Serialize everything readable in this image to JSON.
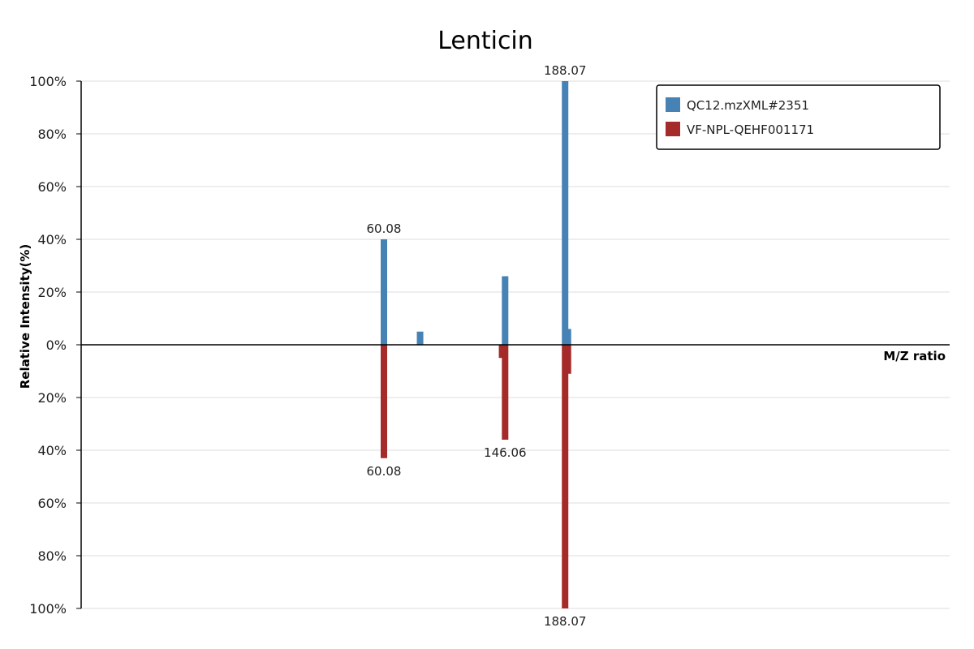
{
  "chart_data": {
    "type": "bar",
    "title": "Lenticin",
    "ylabel": "Relative Intensity(%)",
    "xlabel": "M/Z ratio",
    "xlim": [
      0,
      215
    ],
    "ylim": [
      -100,
      100
    ],
    "y_ticks": [
      "100%",
      "80%",
      "60%",
      "40%",
      "20%",
      "0%",
      "20%",
      "40%",
      "60%",
      "80%",
      "100%"
    ],
    "legend_position": "top-right",
    "grid": true,
    "series": [
      {
        "name": "QC12.mzXML#2351",
        "color": "#4682b4",
        "direction": "up",
        "peaks": [
          {
            "mz": 74.95,
            "intensity": 40,
            "label": "60.08"
          },
          {
            "mz": 83.9,
            "intensity": 5
          },
          {
            "mz": 104.95,
            "intensity": 26
          },
          {
            "mz": 119.8,
            "intensity": 100,
            "label": "188.07"
          },
          {
            "mz": 120.5,
            "intensity": 6
          }
        ]
      },
      {
        "name": "VF-NPL-QEHF001171",
        "color": "#a52a2a",
        "direction": "down",
        "peaks": [
          {
            "mz": 74.95,
            "intensity": 43,
            "label": "60.08"
          },
          {
            "mz": 104.95,
            "intensity": 36,
            "label": "146.06"
          },
          {
            "mz": 104.2,
            "intensity": 5
          },
          {
            "mz": 119.8,
            "intensity": 100,
            "label": "188.07"
          },
          {
            "mz": 120.5,
            "intensity": 11
          }
        ]
      }
    ]
  }
}
